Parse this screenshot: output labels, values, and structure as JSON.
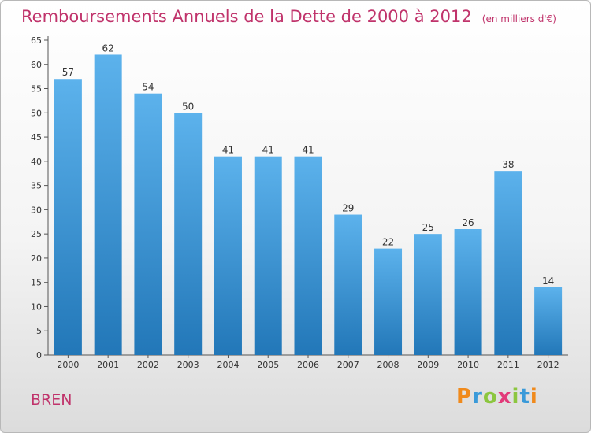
{
  "header": {
    "title": "Remboursements Annuels de la Dette de 2000 à 2012",
    "subtitle": "(en milliers d'€)"
  },
  "footer": {
    "place": "BREN",
    "logo_letters": [
      "P",
      "r",
      "o",
      "x",
      "i",
      "t",
      "i"
    ]
  },
  "colors": {
    "title": "#c0336b",
    "bar_top": "#5cb2ec",
    "bar_bottom": "#2277b8",
    "logo": [
      "#f08a1c",
      "#3a9ad9",
      "#8cc63f",
      "#e23b7a",
      "#8cc63f",
      "#3a9ad9",
      "#f08a1c"
    ]
  },
  "chart_data": {
    "type": "bar",
    "title": "Remboursements Annuels de la Dette de 2000 à 2012",
    "categories": [
      "2000",
      "2001",
      "2002",
      "2003",
      "2004",
      "2005",
      "2006",
      "2007",
      "2008",
      "2009",
      "2010",
      "2011",
      "2012"
    ],
    "values": [
      57,
      62,
      54,
      50,
      41,
      41,
      41,
      29,
      22,
      25,
      26,
      38,
      14
    ],
    "ylim": [
      0,
      65
    ],
    "yticks": [
      0,
      5,
      10,
      15,
      20,
      25,
      30,
      35,
      40,
      45,
      50,
      55,
      60,
      65
    ],
    "grid": false,
    "legend": "none"
  }
}
